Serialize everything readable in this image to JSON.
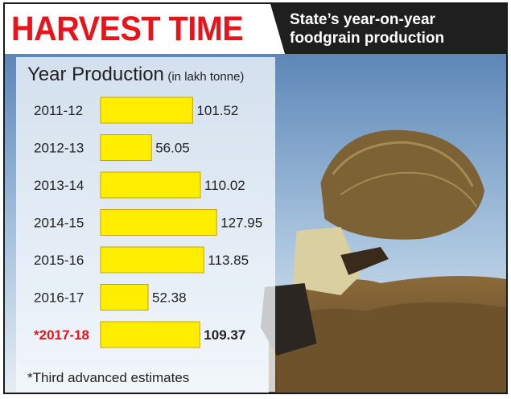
{
  "header": {
    "title": "HARVEST TIME",
    "subtitle": "State’s year-on-year foodgrain production"
  },
  "panel": {
    "heading": "Year Production",
    "unit": "(in lakh tonne)"
  },
  "footnote": "*Third advanced estimates",
  "colors": {
    "title_red": "#e8131b",
    "bar_yellow": "#ffee00",
    "bar_border": "#c9a400",
    "highlight_label": "#e8131b",
    "subtitle_bg": "#1f1f1f"
  },
  "photo": {
    "icon": "harvest-photo-farmer-carrying-straw"
  },
  "chart_data": {
    "type": "bar",
    "orientation": "horizontal",
    "categories": [
      "2011-12",
      "2012-13",
      "2013-14",
      "2014-15",
      "2015-16",
      "2016-17",
      "*2017-18"
    ],
    "values": [
      101.52,
      56.05,
      110.02,
      127.95,
      113.85,
      52.38,
      109.37
    ],
    "value_labels": [
      "101.52",
      "56.05",
      "110.02",
      "127.95",
      "113.85",
      "52.38",
      "109.37"
    ],
    "highlight_index": 6,
    "grid": false,
    "legend": "none"
  }
}
